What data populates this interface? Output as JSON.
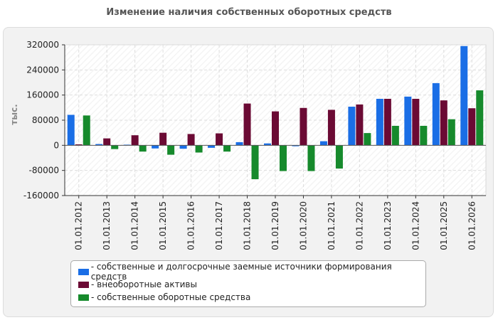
{
  "chart_data": {
    "type": "bar",
    "title": "Изменение наличия собственных оборотных средств",
    "ylabel": "тыс.",
    "xlabel": "",
    "ylim": [
      -160000,
      320000
    ],
    "yticks": [
      320000,
      240000,
      160000,
      80000,
      0,
      -80000,
      -160000
    ],
    "ytick_labels": [
      "320000",
      "240000",
      "160000",
      "80000",
      "0",
      "-80000",
      "-160000"
    ],
    "grid": true,
    "legend_position": "bottom",
    "categories": [
      "01.01.2012",
      "01.01.2013",
      "01.01.2014",
      "01.01.2015",
      "01.01.2016",
      "01.01.2017",
      "01.01.2018",
      "01.01.2019",
      "01.01.2020",
      "01.01.2021",
      "01.01.2022",
      "01.01.2023",
      "01.01.2024",
      "01.01.2025",
      "01.01.2026"
    ],
    "series": [
      {
        "name": "собственные и долгосрочные заемные источники формирования средств",
        "color": "#1a6ee6",
        "values": [
          97000,
          4000,
          2000,
          -10000,
          -11000,
          -8000,
          10000,
          6000,
          -3000,
          13000,
          123000,
          148000,
          155000,
          198000,
          316000
        ]
      },
      {
        "name": "внеоборотные активы",
        "color": "#6b0a34",
        "values": [
          3000,
          22000,
          32000,
          40000,
          36000,
          38000,
          133000,
          108000,
          119000,
          113000,
          130000,
          148000,
          148000,
          143000,
          118000
        ]
      },
      {
        "name": "собственные оборотные средства",
        "color": "#168a2c",
        "values": [
          95000,
          -12000,
          -20000,
          -30000,
          -23000,
          -20000,
          -108000,
          -82000,
          -82000,
          -74000,
          39000,
          62000,
          62000,
          83000,
          175000
        ]
      }
    ]
  }
}
